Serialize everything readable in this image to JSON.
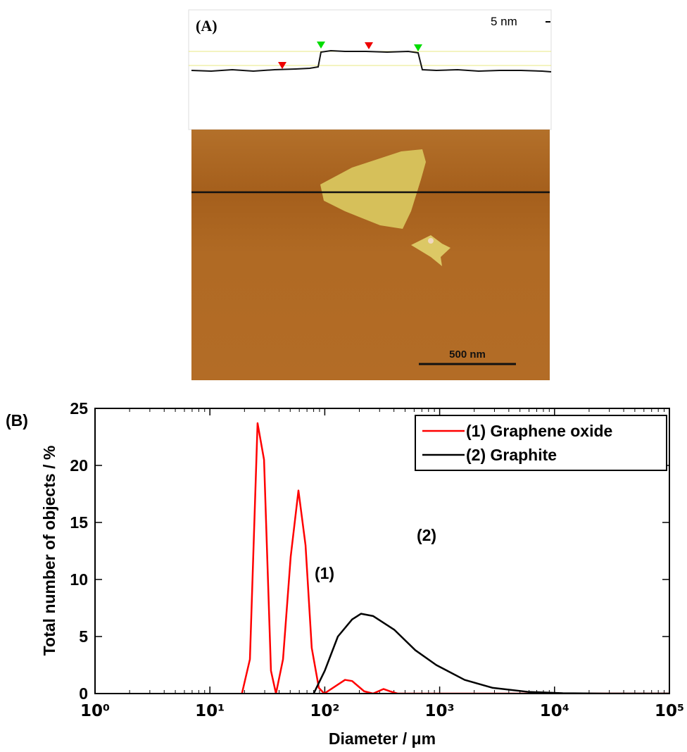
{
  "panel_a": {
    "label": "(A)",
    "height_scale": "5 nm",
    "scale_bar": "500 nm"
  },
  "chart_data": {
    "type": "line",
    "panel_label": "(B)",
    "x_label": "Diameter / μm",
    "y_label": "Total number of objects / %",
    "xscale": "log",
    "xlim": [
      1,
      100000
    ],
    "xticks": [
      {
        "value": 1,
        "label": "10⁰"
      },
      {
        "value": 10,
        "label": "10¹"
      },
      {
        "value": 100,
        "label": "10²"
      },
      {
        "value": 1000,
        "label": "10³"
      },
      {
        "value": 10000,
        "label": "10⁴"
      },
      {
        "value": 100000,
        "label": "10⁵"
      }
    ],
    "ylim": [
      0,
      25
    ],
    "yticks": [
      0,
      5,
      10,
      15,
      20,
      25
    ],
    "legend": "upper right",
    "annotations": [
      "(1)",
      "(2)"
    ],
    "series": [
      {
        "name": "(1) Graphene oxide",
        "color": "#ff0000",
        "x": [
          19,
          22.3,
          26,
          29.6,
          34,
          37.6,
          43.3,
          50.5,
          59,
          68,
          77,
          88.8,
          99,
          150,
          173,
          220,
          263,
          325,
          370,
          430,
          1000,
          10000,
          100000
        ],
        "values": [
          0,
          3,
          23.7,
          20.5,
          2,
          0,
          3,
          12,
          17.8,
          13,
          4,
          0.5,
          0,
          1.2,
          1.1,
          0.2,
          0,
          0.4,
          0.2,
          0,
          0,
          0,
          0
        ]
      },
      {
        "name": "(2) Graphite",
        "color": "#000000",
        "x": [
          80,
          100,
          130,
          173,
          207,
          263,
          402,
          614,
          935,
          1650,
          2900,
          5870,
          11800,
          27700,
          100000
        ],
        "values": [
          0,
          2,
          5,
          6.5,
          7,
          6.8,
          5.6,
          3.8,
          2.5,
          1.2,
          0.5,
          0.15,
          0.03,
          0,
          0
        ]
      }
    ]
  }
}
